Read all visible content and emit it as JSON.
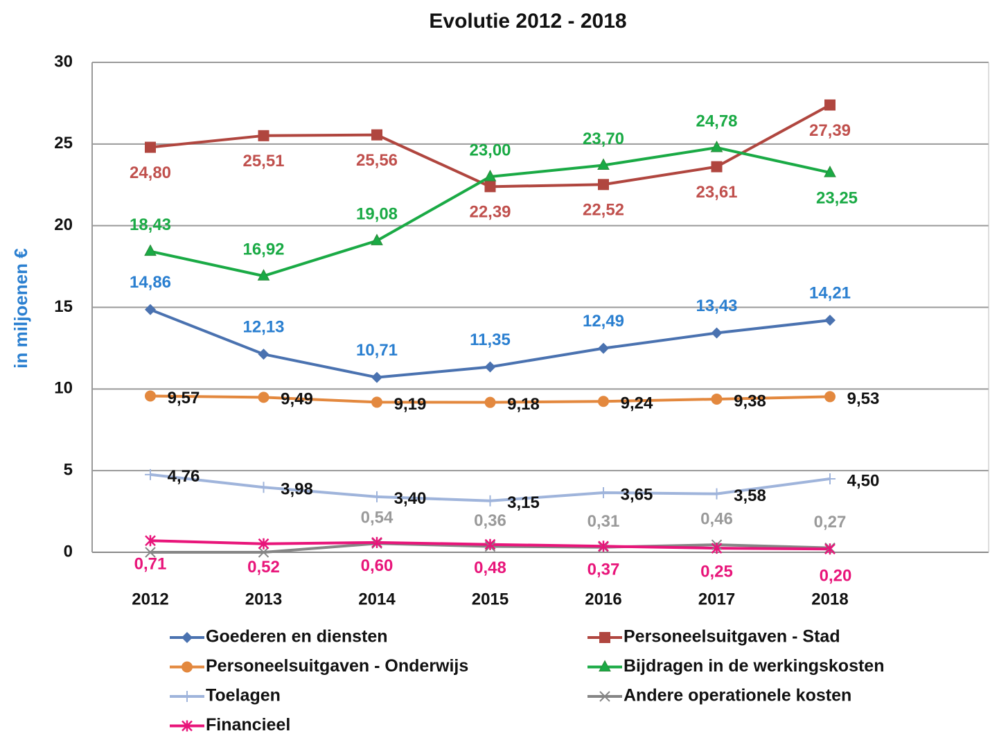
{
  "chart_data": {
    "type": "line",
    "title": "Evolutie 2012 - 2018",
    "y_label": "in miljoenen €",
    "categories": [
      "2012",
      "2013",
      "2014",
      "2015",
      "2016",
      "2017",
      "2018"
    ],
    "ylim": [
      0,
      30
    ],
    "yticks": [
      0,
      5,
      10,
      15,
      20,
      25,
      30
    ],
    "grid": true,
    "series": [
      {
        "name": "Goederen en diensten",
        "color": "#4a72b0",
        "label_color": "#2a7fd0",
        "marker": "diamond",
        "values": [
          14.86,
          12.13,
          10.71,
          11.35,
          12.49,
          13.43,
          14.21
        ],
        "value_labels": [
          "14,86",
          "12,13",
          "10,71",
          "11,35",
          "12,49",
          "13,43",
          "14,21"
        ]
      },
      {
        "name": "Personeelsuitgaven - Stad",
        "color": "#b0463f",
        "label_color": "#c0504d",
        "marker": "square",
        "values": [
          24.8,
          25.51,
          25.56,
          22.39,
          22.52,
          23.61,
          27.39
        ],
        "value_labels": [
          "24,80",
          "25,51",
          "25,56",
          "22,39",
          "22,52",
          "23,61",
          "27,39"
        ]
      },
      {
        "name": "Personeelsuitgaven - Onderwijs",
        "color": "#e3883e",
        "label_color": "#111111",
        "marker": "circle",
        "values": [
          9.57,
          9.49,
          9.19,
          9.18,
          9.24,
          9.38,
          9.53
        ],
        "value_labels": [
          "9,57",
          "9,49",
          "9,19",
          "9,18",
          "9,24",
          "9,38",
          "9,53"
        ]
      },
      {
        "name": "Bijdragen in de werkingskosten",
        "color": "#1aaa45",
        "label_color": "#1aaa45",
        "marker": "triangle",
        "values": [
          18.43,
          16.92,
          19.08,
          23.0,
          23.7,
          24.78,
          23.25
        ],
        "value_labels": [
          "18,43",
          "16,92",
          "19,08",
          "23,00",
          "23,70",
          "24,78",
          "23,25"
        ]
      },
      {
        "name": "Toelagen",
        "color": "#9fb4db",
        "label_color": "#111111",
        "marker": "plus",
        "values": [
          4.76,
          3.98,
          3.4,
          3.15,
          3.65,
          3.58,
          4.5
        ],
        "value_labels": [
          "4,76",
          "3,98",
          "3,40",
          "3,15",
          "3,65",
          "3,58",
          "4,50"
        ]
      },
      {
        "name": "Andere operationele kosten",
        "color": "#858585",
        "label_color": "#9a9a9a",
        "marker": "x",
        "values": [
          0,
          0,
          0.54,
          0.36,
          0.31,
          0.46,
          0.27
        ],
        "value_labels": [
          null,
          null,
          "0,54",
          "0,36",
          "0,31",
          "0,46",
          "0,27"
        ]
      },
      {
        "name": "Financieel",
        "color": "#e8157a",
        "label_color": "#e8157a",
        "marker": "star",
        "values": [
          0.71,
          0.52,
          0.6,
          0.48,
          0.37,
          0.25,
          0.2
        ],
        "value_labels": [
          "0,71",
          "0,52",
          "0,60",
          "0,48",
          "0,37",
          "0,25",
          "0,20"
        ]
      }
    ]
  }
}
